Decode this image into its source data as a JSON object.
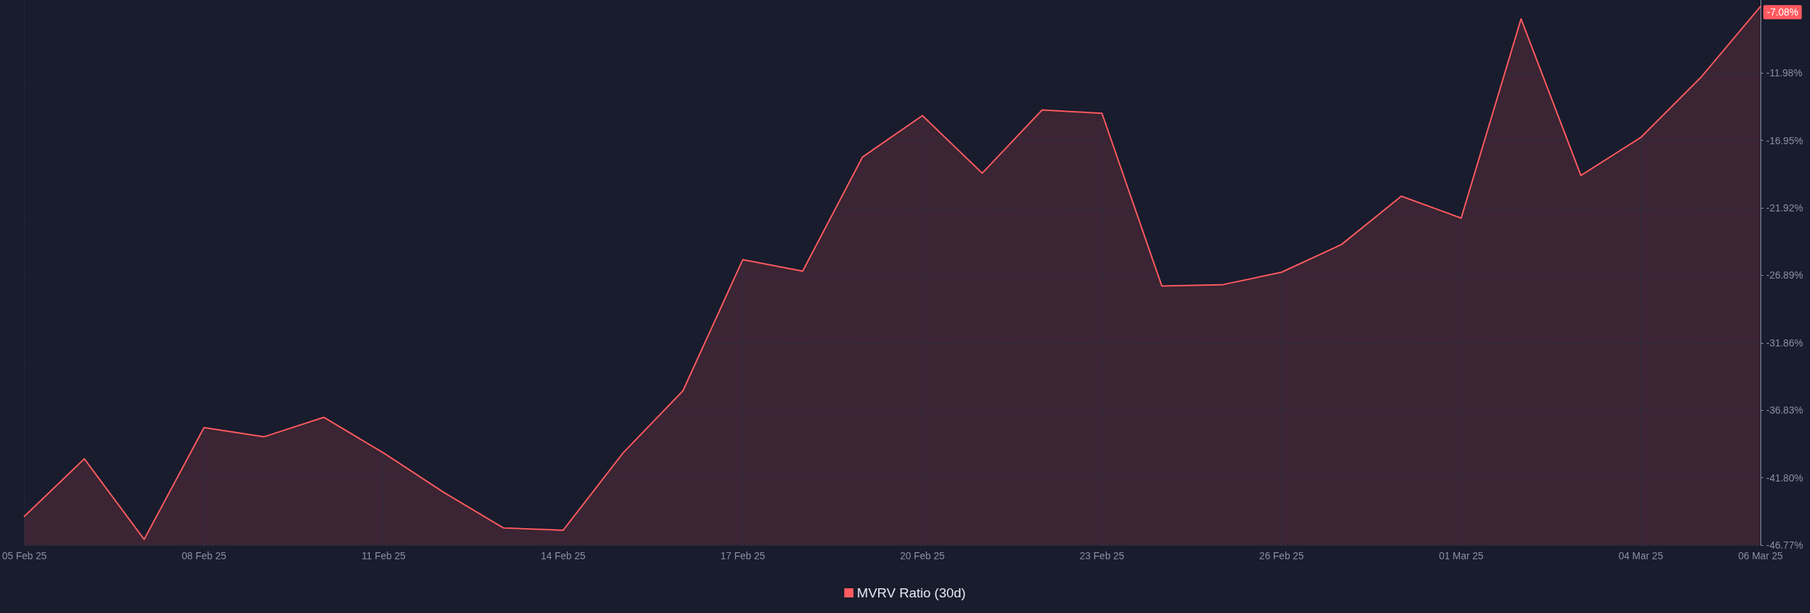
{
  "chart_data": {
    "type": "area",
    "categories": [
      "05 Feb 25",
      null,
      null,
      "08 Feb 25",
      null,
      null,
      "11 Feb 25",
      null,
      null,
      "14 Feb 25",
      null,
      null,
      "17 Feb 25",
      null,
      null,
      "20 Feb 25",
      null,
      null,
      "23 Feb 25",
      null,
      null,
      "26 Feb 25",
      null,
      null,
      "01 Mar 25",
      null,
      null,
      "04 Mar 25",
      null,
      "06 Mar 25"
    ],
    "series": [
      {
        "name": "MVRV Ratio (30d)",
        "color": "#ff5a5f",
        "values": [
          -44.65,
          -40.41,
          -46.35,
          -38.11,
          -38.79,
          -37.35,
          -39.98,
          -42.87,
          -45.5,
          -45.67,
          -39.98,
          -35.4,
          -25.73,
          -26.58,
          -18.17,
          -15.12,
          -19.36,
          -14.7,
          -14.95,
          -27.68,
          -27.59,
          -26.66,
          -24.62,
          -21.06,
          -22.67,
          -7.99,
          -19.53,
          -16.73,
          -12.32,
          -7.08
        ],
        "value_labels": [
          null,
          null,
          null,
          null,
          null,
          null,
          null,
          null,
          null,
          null,
          null,
          null,
          null,
          null,
          null,
          null,
          null,
          null,
          null,
          null,
          null,
          null,
          null,
          null,
          null,
          null,
          null,
          null,
          null,
          "-7.08%"
        ]
      }
    ],
    "ylim": [
      -46.77,
      -6.6
    ],
    "yticks": [
      {
        "value": -46.77,
        "label": "-46.77%"
      },
      {
        "value": -41.8,
        "label": "-41.80%"
      },
      {
        "value": -36.83,
        "label": "-36.83%"
      },
      {
        "value": -31.86,
        "label": "-31.86%"
      },
      {
        "value": -26.89,
        "label": "-26.89%"
      },
      {
        "value": -21.92,
        "label": "-21.92%"
      },
      {
        "value": -16.95,
        "label": "-16.95%"
      },
      {
        "value": -11.98,
        "label": "-11.98%"
      }
    ],
    "grid": true,
    "line_style": "solid",
    "marker": "none",
    "legend": "bottom"
  }
}
